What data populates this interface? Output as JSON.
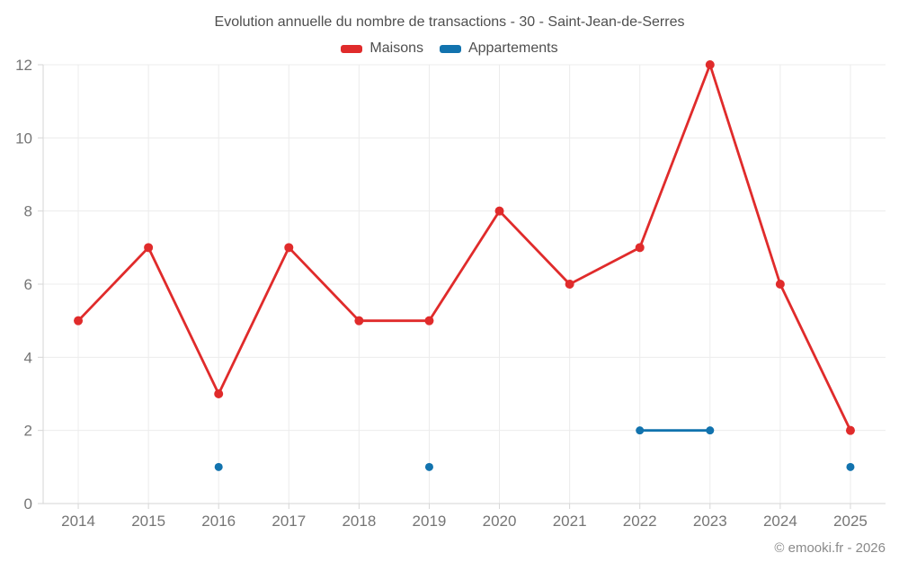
{
  "title": "Evolution annuelle du nombre de transactions - 30 - Saint-Jean-de-Serres",
  "footer": "© emooki.fr - 2026",
  "legend": {
    "items": [
      {
        "label": "Maisons",
        "color": "#e02b2b"
      },
      {
        "label": "Appartements",
        "color": "#1273ae"
      }
    ]
  },
  "colors": {
    "maisons": "#e02b2b",
    "appartements": "#1273ae",
    "grid": "#ececec",
    "axis": "#d6d6d6",
    "tick_label": "#757575",
    "background": "#ffffff"
  },
  "chart_data": {
    "type": "line",
    "title": "Evolution annuelle du nombre de transactions - 30 - Saint-Jean-de-Serres",
    "xlabel": "",
    "ylabel": "",
    "categories": [
      "2014",
      "2015",
      "2016",
      "2017",
      "2018",
      "2019",
      "2020",
      "2021",
      "2022",
      "2023",
      "2024",
      "2025"
    ],
    "series": [
      {
        "name": "Maisons",
        "color": "#e02b2b",
        "values": [
          5,
          7,
          3,
          7,
          5,
          5,
          8,
          6,
          7,
          12,
          6,
          2
        ]
      },
      {
        "name": "Appartements",
        "color": "#1273ae",
        "values": [
          null,
          null,
          1,
          null,
          null,
          1,
          null,
          null,
          2,
          2,
          null,
          1
        ]
      }
    ],
    "ylim": [
      0,
      12
    ],
    "yticks": [
      0,
      2,
      4,
      6,
      8,
      10,
      12
    ],
    "grid": true,
    "legend_position": "top"
  }
}
